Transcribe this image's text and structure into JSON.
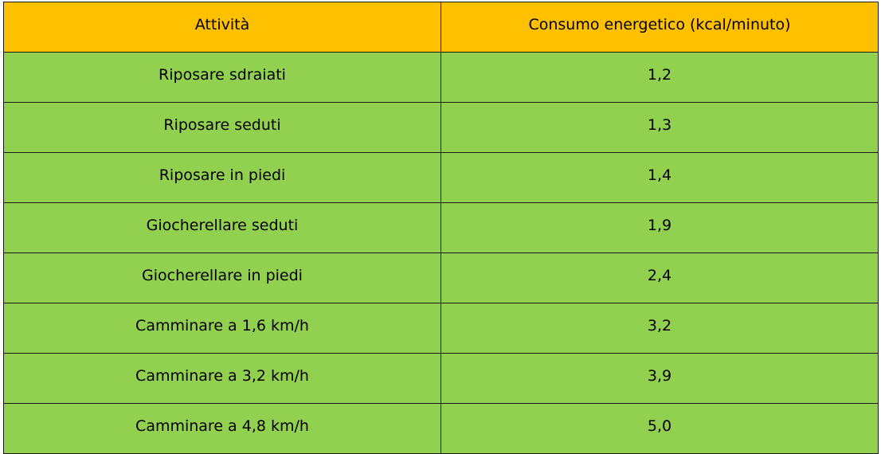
{
  "table": {
    "header": [
      "Attività",
      "Consumo energetico (kcal/minuto)"
    ],
    "rows": [
      [
        "Riposare sdraiati",
        "1,2"
      ],
      [
        "Riposare seduti",
        "1,3"
      ],
      [
        "Riposare in piedi",
        "1,4"
      ],
      [
        "Giocherellare seduti",
        "1,9"
      ],
      [
        "Giocherellare in piedi",
        "2,4"
      ],
      [
        "Camminare a 1,6 km/h",
        "3,2"
      ],
      [
        "Camminare a 3,2 km/h",
        "3,9"
      ],
      [
        "Camminare a 4,8 km/h",
        "5,0"
      ]
    ]
  }
}
